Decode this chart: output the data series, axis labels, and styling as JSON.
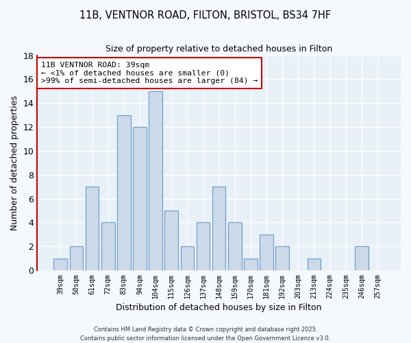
{
  "title": "11B, VENTNOR ROAD, FILTON, BRISTOL, BS34 7HF",
  "subtitle": "Size of property relative to detached houses in Filton",
  "xlabel": "Distribution of detached houses by size in Filton",
  "ylabel": "Number of detached properties",
  "bar_color": "#ccd9e8",
  "bar_edge_color": "#6699cc",
  "categories": [
    "39sqm",
    "50sqm",
    "61sqm",
    "72sqm",
    "83sqm",
    "94sqm",
    "104sqm",
    "115sqm",
    "126sqm",
    "137sqm",
    "148sqm",
    "159sqm",
    "170sqm",
    "181sqm",
    "192sqm",
    "203sqm",
    "213sqm",
    "224sqm",
    "235sqm",
    "246sqm",
    "257sqm"
  ],
  "values": [
    1,
    2,
    7,
    4,
    13,
    12,
    15,
    5,
    2,
    4,
    7,
    4,
    1,
    3,
    2,
    0,
    1,
    0,
    0,
    2,
    0
  ],
  "ylim": [
    0,
    18
  ],
  "yticks": [
    0,
    2,
    4,
    6,
    8,
    10,
    12,
    14,
    16,
    18
  ],
  "annotation_title": "11B VENTNOR ROAD: 39sqm",
  "annotation_line1": "← <1% of detached houses are smaller (0)",
  "annotation_line2": ">99% of semi-detached houses are larger (84) →",
  "annotation_box_facecolor": "#ffffff",
  "annotation_box_edgecolor": "#cc0000",
  "background_color": "#f5f8fc",
  "plot_bg_color": "#e8f0f8",
  "grid_color": "#ffffff",
  "footer1": "Contains HM Land Registry data © Crown copyright and database right 2025.",
  "footer2": "Contains public sector information licensed under the Open Government Licence v3.0."
}
